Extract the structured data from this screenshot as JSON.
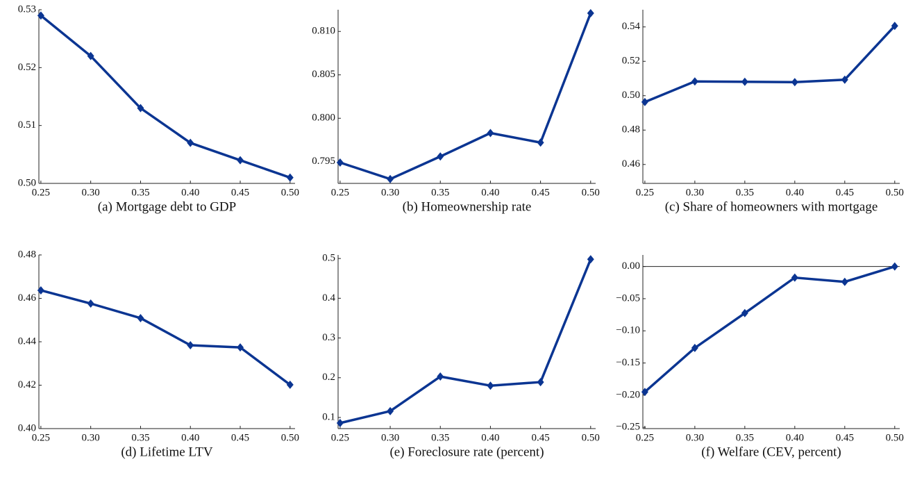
{
  "chart_data": [
    {
      "type": "line",
      "caption": "(a) Mortgage debt to GDP",
      "color": "#0b3592",
      "x": [
        0.25,
        0.3,
        0.35,
        0.4,
        0.45,
        0.5
      ],
      "values": [
        0.529,
        0.522,
        0.513,
        0.507,
        0.504,
        0.501
      ],
      "xlim": [
        0.248,
        0.505
      ],
      "xticks": [
        0.25,
        {
          "value": 0.3,
          "label": "0.30"
        },
        0.35,
        {
          "value": 0.4,
          "label": "0.40"
        },
        0.45,
        {
          "value": 0.5,
          "label": "0.50"
        }
      ],
      "ylim": [
        0.5,
        0.53
      ],
      "yticks": [
        {
          "value": 0.5,
          "label": "0.50"
        },
        0.51,
        0.52,
        0.53
      ]
    },
    {
      "type": "line",
      "caption": "(b) Homeownership rate",
      "color": "#0b3592",
      "x": [
        0.25,
        0.3,
        0.35,
        0.4,
        0.45,
        0.5
      ],
      "values": [
        0.7949,
        0.793,
        0.7956,
        0.7983,
        0.7972,
        0.8121
      ],
      "xlim": [
        0.248,
        0.505
      ],
      "xticks": [
        0.25,
        {
          "value": 0.3,
          "label": "0.30"
        },
        0.35,
        {
          "value": 0.4,
          "label": "0.40"
        },
        0.45,
        {
          "value": 0.5,
          "label": "0.50"
        }
      ],
      "ylim": [
        0.7925,
        0.8125
      ],
      "yticks": [
        0.795,
        {
          "value": 0.8,
          "label": "0.800"
        },
        0.805,
        {
          "value": 0.81,
          "label": "0.810"
        }
      ]
    },
    {
      "type": "line",
      "caption": "(c) Share of homeowners with mortgage",
      "color": "#0b3592",
      "x": [
        0.25,
        0.3,
        0.35,
        0.4,
        0.45,
        0.5
      ],
      "values": [
        0.4963,
        0.5083,
        0.5081,
        0.5079,
        0.5093,
        0.5406
      ],
      "xlim": [
        0.248,
        0.505
      ],
      "xticks": [
        0.25,
        {
          "value": 0.3,
          "label": "0.30"
        },
        0.35,
        {
          "value": 0.4,
          "label": "0.40"
        },
        0.45,
        {
          "value": 0.5,
          "label": "0.50"
        }
      ],
      "ylim": [
        0.449,
        0.55
      ],
      "yticks": [
        0.46,
        0.48,
        {
          "value": 0.5,
          "label": "0.50"
        },
        0.52,
        0.54
      ]
    },
    {
      "type": "line",
      "caption": "(d) Lifetime LTV",
      "color": "#0b3592",
      "x": [
        0.25,
        0.3,
        0.35,
        0.4,
        0.45,
        0.5
      ],
      "values": [
        0.4637,
        0.4576,
        0.4509,
        0.4384,
        0.4374,
        0.4202
      ],
      "xlim": [
        0.248,
        0.505
      ],
      "xticks": [
        0.25,
        {
          "value": 0.3,
          "label": "0.30"
        },
        0.35,
        {
          "value": 0.4,
          "label": "0.40"
        },
        0.45,
        {
          "value": 0.5,
          "label": "0.50"
        }
      ],
      "ylim": [
        0.4,
        0.48
      ],
      "yticks": [
        {
          "value": 0.4,
          "label": "0.40"
        },
        0.42,
        0.44,
        0.46,
        0.48
      ]
    },
    {
      "type": "line",
      "caption": "(e) Foreclosure rate (percent)",
      "color": "#0b3592",
      "x": [
        0.25,
        0.3,
        0.35,
        0.4,
        0.45,
        0.5
      ],
      "values": [
        0.086,
        0.116,
        0.203,
        0.18,
        0.189,
        0.498
      ],
      "xlim": [
        0.248,
        0.505
      ],
      "xticks": [
        0.25,
        {
          "value": 0.3,
          "label": "0.30"
        },
        0.35,
        {
          "value": 0.4,
          "label": "0.40"
        },
        0.45,
        {
          "value": 0.5,
          "label": "0.50"
        }
      ],
      "ylim": [
        0.072,
        0.509
      ],
      "yticks": [
        0.1,
        0.2,
        0.3,
        0.4,
        0.5
      ]
    },
    {
      "type": "line",
      "caption": "(f) Welfare (CEV, percent)",
      "color": "#0b3592",
      "zero_line": true,
      "x": [
        0.25,
        0.3,
        0.35,
        0.4,
        0.45,
        0.5
      ],
      "values": [
        -0.195,
        -0.1266,
        -0.0725,
        -0.0173,
        -0.0238,
        0.0
      ],
      "xlim": [
        0.248,
        0.505
      ],
      "xticks": [
        0.25,
        {
          "value": 0.3,
          "label": "0.30"
        },
        0.35,
        {
          "value": 0.4,
          "label": "0.40"
        },
        0.45,
        {
          "value": 0.5,
          "label": "0.50"
        }
      ],
      "ylim": [
        -0.252,
        0.018
      ],
      "yticks": [
        {
          "value": -0.25,
          "label": "−0.25"
        },
        {
          "value": -0.2,
          "label": "−0.20"
        },
        {
          "value": -0.15,
          "label": "−0.15"
        },
        {
          "value": -0.1,
          "label": "−0.10"
        },
        {
          "value": -0.05,
          "label": "−0.05"
        },
        {
          "value": 0,
          "label": "0.00"
        }
      ]
    }
  ]
}
